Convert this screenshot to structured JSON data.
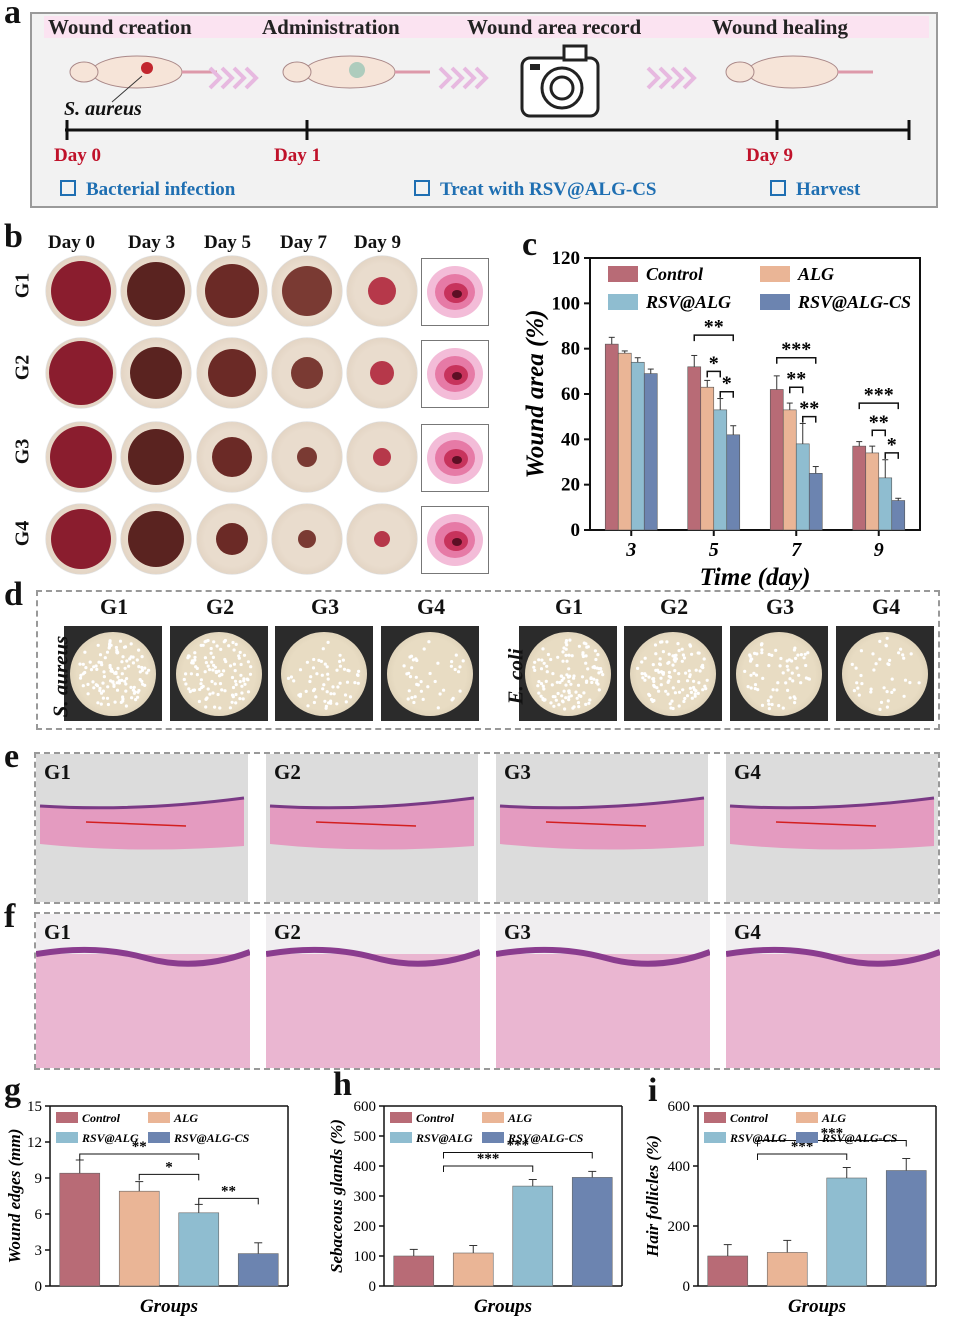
{
  "panel_a": {
    "label": "a",
    "steps": [
      "Wound creation",
      "Administration",
      "Wound area record",
      "Wound healing"
    ],
    "bacteria": "S. aureus",
    "days": [
      "Day 0",
      "Day 1",
      "Day 9"
    ],
    "notes": [
      "Bacterial infection",
      "Treat with RSV@ALG-CS",
      "Harvest"
    ]
  },
  "panel_b": {
    "label": "b",
    "columns": [
      "Day 0",
      "Day 3",
      "Day 5",
      "Day 7",
      "Day 9"
    ],
    "rows": [
      "G1",
      "G2",
      "G3",
      "G4"
    ]
  },
  "panel_d": {
    "label": "d",
    "groups": [
      "G1",
      "G2",
      "G3",
      "G4",
      "G1",
      "G2",
      "G3",
      "G4"
    ],
    "species_left": "S. aureus",
    "species_right": "E. coli"
  },
  "panel_e": {
    "label": "e",
    "groups": [
      "G1",
      "G2",
      "G3",
      "G4"
    ]
  },
  "panel_f": {
    "label": "f",
    "groups": [
      "G1",
      "G2",
      "G3",
      "G4"
    ]
  },
  "colors": {
    "control": "#b86b76",
    "alg": "#eab596",
    "rsv_alg": "#8fbdd0",
    "rsv_alg_cs": "#6c84b0",
    "day": "#c0122a",
    "note": "#1f6fb2"
  },
  "chart_data": [
    {
      "panel": "c",
      "type": "bar",
      "categories": [
        "3",
        "5",
        "7",
        "9"
      ],
      "xlabel": "Time (day)",
      "ylabel": "Wound area (%)",
      "ylim": [
        0,
        120
      ],
      "yticks": [
        "0",
        "20",
        "40",
        "60",
        "80",
        "100",
        "120"
      ],
      "legend": "top",
      "series": [
        {
          "name": "Control",
          "values": [
            82,
            72,
            62,
            37
          ],
          "err": [
            3,
            5,
            6,
            2
          ]
        },
        {
          "name": "ALG",
          "values": [
            78,
            63,
            53,
            34
          ],
          "err": [
            1,
            3,
            3,
            3
          ]
        },
        {
          "name": "RSV@ALG",
          "values": [
            74,
            53,
            38,
            23
          ],
          "err": [
            2,
            5,
            9,
            8
          ]
        },
        {
          "name": "RSV@ALG-CS",
          "values": [
            69,
            42,
            25,
            13
          ],
          "err": [
            2,
            4,
            3,
            1
          ]
        }
      ],
      "sig": [
        {
          "cat": 1,
          "from": 0,
          "to": 3,
          "mark": "**",
          "y": 86
        },
        {
          "cat": 1,
          "from": 1,
          "to": 2,
          "mark": "*",
          "y": 70
        },
        {
          "cat": 1,
          "from": 2,
          "to": 3,
          "mark": "*",
          "y": 61
        },
        {
          "cat": 2,
          "from": 0,
          "to": 3,
          "mark": "***",
          "y": 76
        },
        {
          "cat": 2,
          "from": 1,
          "to": 2,
          "mark": "**",
          "y": 63
        },
        {
          "cat": 2,
          "from": 2,
          "to": 3,
          "mark": "**",
          "y": 50
        },
        {
          "cat": 3,
          "from": 0,
          "to": 3,
          "mark": "***",
          "y": 56
        },
        {
          "cat": 3,
          "from": 1,
          "to": 2,
          "mark": "**",
          "y": 44
        },
        {
          "cat": 3,
          "from": 2,
          "to": 3,
          "mark": "*",
          "y": 34
        }
      ]
    },
    {
      "panel": "g",
      "type": "bar",
      "categories": [
        "Control",
        "ALG",
        "RSV@ALG",
        "RSV@ALG-CS"
      ],
      "xlabel": "Groups",
      "ylabel": "Wound edges (mm)",
      "ylim": [
        0,
        15
      ],
      "yticks": [
        "0",
        "3",
        "6",
        "9",
        "12",
        "15"
      ],
      "values": [
        9.4,
        7.9,
        6.1,
        2.7
      ],
      "err": [
        1.1,
        0.8,
        0.7,
        0.9
      ],
      "sig": [
        {
          "from": 0,
          "to": 2,
          "mark": "**",
          "y": 11.0
        },
        {
          "from": 1,
          "to": 2,
          "mark": "*",
          "y": 9.3
        },
        {
          "from": 2,
          "to": 3,
          "mark": "**",
          "y": 7.3
        }
      ]
    },
    {
      "panel": "h",
      "type": "bar",
      "categories": [
        "Control",
        "ALG",
        "RSV@ALG",
        "RSV@ALG-CS"
      ],
      "xlabel": "Groups",
      "ylabel": "Sebaceous glands (%)",
      "ylim": [
        0,
        600
      ],
      "yticks": [
        "0",
        "100",
        "200",
        "300",
        "400",
        "500",
        "600"
      ],
      "values": [
        100,
        110,
        333,
        362
      ],
      "err": [
        22,
        25,
        22,
        20
      ],
      "sig": [
        {
          "from": 0.5,
          "to": 2,
          "mark": "***",
          "y": 400
        },
        {
          "from": 0.5,
          "to": 3,
          "mark": "***",
          "y": 445
        }
      ]
    },
    {
      "panel": "i",
      "type": "bar",
      "categories": [
        "Control",
        "ALG",
        "RSV@ALG",
        "RSV@ALG-CS"
      ],
      "xlabel": "Groups",
      "ylabel": "Hair follicles (%)",
      "ylim": [
        0,
        600
      ],
      "yticks": [
        "0",
        "200",
        "400",
        "600"
      ],
      "values": [
        100,
        112,
        360,
        385
      ],
      "err": [
        38,
        40,
        35,
        40
      ],
      "sig": [
        {
          "from": 0.5,
          "to": 2,
          "mark": "***",
          "y": 440
        },
        {
          "from": 0.5,
          "to": 3,
          "mark": "***",
          "y": 485
        }
      ]
    }
  ]
}
